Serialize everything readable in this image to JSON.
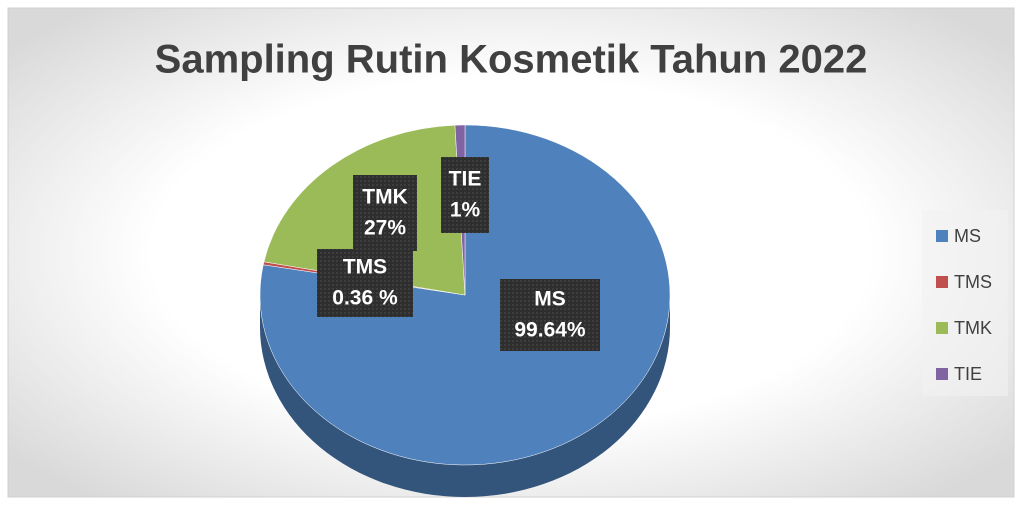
{
  "chart_data": {
    "type": "pie",
    "title": "Sampling Rutin Kosmetik Tahun 2022",
    "categories": [
      "MS",
      "TMS",
      "TMK",
      "TIE"
    ],
    "values": [
      99.64,
      0.36,
      27,
      1
    ],
    "value_labels": [
      "99.64%",
      "0.36 %",
      "27%",
      "1%"
    ],
    "colors": [
      "#4f81bd",
      "#c0504d",
      "#9bbb59",
      "#8064a2"
    ],
    "legend": "right"
  }
}
